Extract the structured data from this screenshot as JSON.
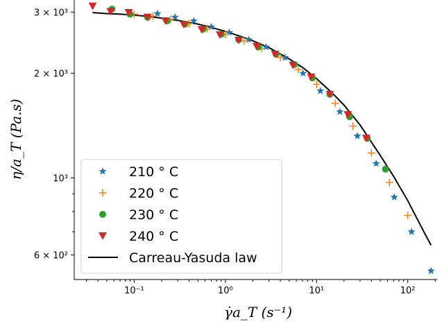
{
  "chart_data": {
    "type": "scatter",
    "title": "",
    "xlabel": "γ̇a_T (s⁻¹)",
    "ylabel": "η/a_T (Pa.s)",
    "xscale": "log",
    "yscale": "log",
    "xlim": [
      0.022,
      210
    ],
    "ylim": [
      510,
      3250
    ],
    "x_ticks": [
      {
        "value": 0.1,
        "label": "10⁻¹"
      },
      {
        "value": 1,
        "label": "10⁰"
      },
      {
        "value": 10,
        "label": "10¹"
      },
      {
        "value": 100,
        "label": "10²"
      }
    ],
    "y_ticks": [
      {
        "value": 600,
        "label": "6 × 10²"
      },
      {
        "value": 1000,
        "label": "10³"
      },
      {
        "value": 2000,
        "label": "2 × 10³"
      },
      {
        "value": 3000,
        "label": "3 × 10³"
      }
    ],
    "grid": false,
    "legend_position": "lower-left",
    "series": [
      {
        "name": "210 ° C",
        "marker": "star",
        "color": "#1f77b4",
        "points": [
          [
            0.18,
            2970
          ],
          [
            0.28,
            2900
          ],
          [
            0.45,
            2830
          ],
          [
            0.7,
            2720
          ],
          [
            1.1,
            2620
          ],
          [
            1.8,
            2500
          ],
          [
            2.8,
            2380
          ],
          [
            4.5,
            2220
          ],
          [
            7.1,
            2000
          ],
          [
            11,
            1780
          ],
          [
            18,
            1550
          ],
          [
            28,
            1320
          ],
          [
            45,
            1100
          ],
          [
            71,
            880
          ],
          [
            110,
            700
          ],
          [
            180,
            540
          ]
        ]
      },
      {
        "name": "220 ° C",
        "marker": "plus",
        "color": "#ff7f0e",
        "points": [
          [
            0.1,
            2960
          ],
          [
            0.16,
            2920
          ],
          [
            0.25,
            2860
          ],
          [
            0.4,
            2780
          ],
          [
            0.63,
            2690
          ],
          [
            1.0,
            2590
          ],
          [
            1.6,
            2480
          ],
          [
            2.5,
            2360
          ],
          [
            4.0,
            2220
          ],
          [
            6.3,
            2050
          ],
          [
            10,
            1860
          ],
          [
            16,
            1640
          ],
          [
            25,
            1410
          ],
          [
            40,
            1180
          ],
          [
            63,
            970
          ],
          [
            100,
            780
          ]
        ]
      },
      {
        "name": "230 ° C",
        "marker": "circle",
        "color": "#2ca02c",
        "points": [
          [
            0.057,
            3060
          ],
          [
            0.09,
            2960
          ],
          [
            0.14,
            2900
          ],
          [
            0.23,
            2830
          ],
          [
            0.36,
            2770
          ],
          [
            0.57,
            2680
          ],
          [
            0.9,
            2590
          ],
          [
            1.4,
            2500
          ],
          [
            2.3,
            2380
          ],
          [
            3.6,
            2270
          ],
          [
            5.7,
            2120
          ],
          [
            9.0,
            1940
          ],
          [
            14,
            1740
          ],
          [
            23,
            1500
          ],
          [
            36,
            1300
          ],
          [
            57,
            1060
          ]
        ]
      },
      {
        "name": "240 ° C",
        "marker": "triangle-down",
        "color": "#d62728",
        "points": [
          [
            0.035,
            3120
          ],
          [
            0.055,
            3010
          ],
          [
            0.087,
            2990
          ],
          [
            0.14,
            2900
          ],
          [
            0.22,
            2830
          ],
          [
            0.35,
            2760
          ],
          [
            0.55,
            2670
          ],
          [
            0.87,
            2580
          ],
          [
            1.4,
            2490
          ],
          [
            2.2,
            2390
          ],
          [
            3.5,
            2270
          ],
          [
            5.5,
            2110
          ],
          [
            8.7,
            1950
          ],
          [
            14,
            1740
          ],
          [
            22,
            1520
          ],
          [
            35,
            1300
          ]
        ]
      }
    ],
    "fit": {
      "name": "Carreau-Yasuda law",
      "color": "#000000",
      "x": [
        0.035,
        0.05,
        0.07,
        0.1,
        0.15,
        0.2,
        0.3,
        0.5,
        0.7,
        1,
        1.5,
        2,
        3,
        5,
        7,
        10,
        15,
        20,
        30,
        50,
        70,
        100,
        150,
        180
      ],
      "y": [
        2990,
        2970,
        2960,
        2940,
        2910,
        2880,
        2840,
        2770,
        2710,
        2640,
        2550,
        2480,
        2370,
        2200,
        2080,
        1930,
        1750,
        1620,
        1420,
        1160,
        1010,
        860,
        700,
        640
      ]
    }
  }
}
